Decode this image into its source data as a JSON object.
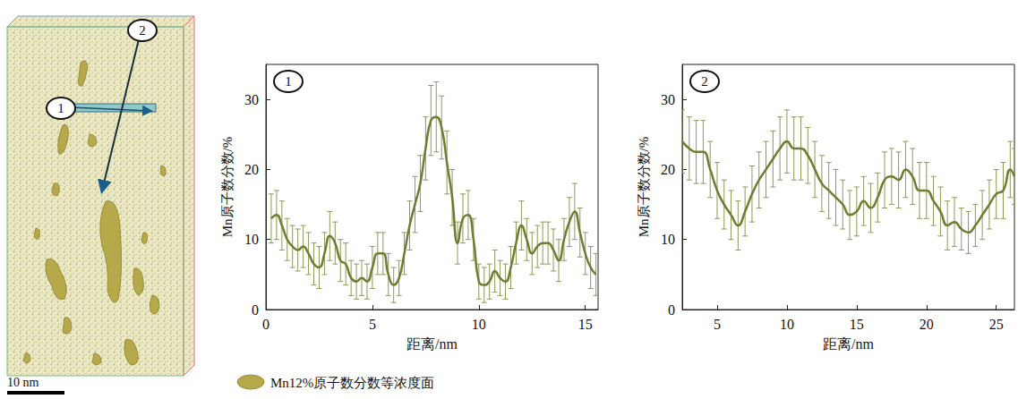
{
  "figure": {
    "markers": [
      "1",
      "2"
    ],
    "scale_bar": "10 nm",
    "isosurface_legend": "Mn12%原子数分数等浓度面"
  },
  "chart_data": [
    {
      "type": "line",
      "title": "1",
      "xlabel": "距离/nm",
      "ylabel": "Mn原子数分数/%",
      "color": "#6f7d32",
      "x": [
        0.25,
        0.5,
        0.75,
        1.0,
        1.25,
        1.5,
        1.75,
        2.0,
        2.25,
        2.5,
        2.75,
        3.0,
        3.25,
        3.5,
        3.75,
        4.0,
        4.25,
        4.5,
        4.75,
        5.0,
        5.25,
        5.5,
        5.75,
        6.0,
        6.25,
        6.5,
        6.75,
        7.0,
        7.25,
        7.5,
        7.75,
        8.0,
        8.25,
        8.5,
        8.75,
        9.0,
        9.25,
        9.5,
        9.75,
        10.0,
        10.25,
        10.5,
        10.75,
        11.0,
        11.25,
        11.5,
        11.75,
        12.0,
        12.25,
        12.5,
        12.75,
        13.0,
        13.25,
        13.5,
        13.75,
        14.0,
        14.25,
        14.5,
        14.75,
        15.0,
        15.25,
        15.5
      ],
      "values": [
        13,
        13.5,
        12,
        10,
        9,
        8.5,
        9,
        8,
        6.5,
        6,
        8,
        10.5,
        9.5,
        7,
        6.5,
        4.5,
        4,
        4.5,
        4,
        6,
        8,
        8,
        5,
        3.5,
        4.5,
        8,
        12,
        15,
        18,
        23,
        27,
        27.5,
        26,
        21,
        16,
        9.5,
        13,
        13.5,
        10,
        4,
        3.5,
        4,
        5.5,
        4.5,
        4,
        6,
        9.5,
        12,
        10,
        8,
        9,
        9.5,
        9.5,
        8.5,
        7,
        10,
        12.5,
        14,
        11,
        8,
        6,
        5
      ],
      "errors": [
        3.5,
        3.5,
        3.5,
        3,
        3,
        3,
        3,
        3,
        3,
        3,
        3,
        3.5,
        3,
        3,
        3,
        2.5,
        2.5,
        2.5,
        2.5,
        3,
        3,
        3,
        3,
        2.5,
        2.5,
        3,
        3.5,
        4,
        4,
        4.5,
        5,
        5,
        4.5,
        4.5,
        4,
        3,
        3.5,
        3.5,
        3,
        2.5,
        2.5,
        2.5,
        3,
        2.5,
        2.5,
        3,
        3,
        3.5,
        3,
        3,
        3,
        3,
        3,
        3,
        3,
        3,
        3.5,
        4,
        3.5,
        3,
        3,
        3
      ],
      "xlim": [
        0,
        15.6
      ],
      "xticks": [
        0,
        5,
        10,
        15
      ],
      "ylim": [
        0,
        35
      ],
      "yticks": [
        0,
        10,
        20,
        30
      ],
      "grid": false
    },
    {
      "type": "line",
      "title": "2",
      "xlabel": "距离/nm",
      "ylabel": "Mn原子数分数/%",
      "color": "#6f7d32",
      "x": [
        2.5,
        3,
        3.5,
        4,
        4.5,
        5,
        5.5,
        6,
        6.5,
        7,
        7.5,
        8,
        8.5,
        9,
        9.5,
        10,
        10.5,
        11,
        11.5,
        12,
        12.5,
        13,
        13.5,
        14,
        14.5,
        15,
        15.5,
        16,
        16.5,
        17,
        17.5,
        18,
        18.5,
        19,
        19.5,
        20,
        20.5,
        21,
        21.5,
        22,
        22.5,
        23,
        23.5,
        24,
        24.5,
        25,
        25.5,
        26,
        26.3
      ],
      "values": [
        24,
        23,
        22.5,
        22.5,
        20,
        17,
        15,
        13.5,
        12,
        14,
        16.5,
        18.5,
        20,
        21.5,
        23,
        24,
        23,
        23,
        22,
        20,
        18,
        17,
        16,
        15,
        13.5,
        14,
        15.5,
        14.5,
        16,
        18.5,
        19,
        18.5,
        20,
        19,
        17,
        17,
        15.5,
        14,
        12,
        12.5,
        11.5,
        11,
        12,
        13.5,
        15,
        16.5,
        17,
        20,
        19
      ],
      "errors": [
        4.5,
        4.5,
        4.5,
        4.5,
        4,
        4,
        3.5,
        3.5,
        3.5,
        3.5,
        4,
        4,
        4,
        4,
        4.5,
        4.5,
        4.5,
        4.5,
        4,
        4,
        4,
        4,
        4,
        3.5,
        3.5,
        3.5,
        3.5,
        3.5,
        3.5,
        4,
        4,
        4,
        4,
        4,
        4,
        4,
        3.5,
        3.5,
        3.5,
        3.5,
        3,
        3,
        3,
        3.5,
        3.5,
        3.5,
        4,
        4,
        4
      ],
      "xlim": [
        2.5,
        26.3
      ],
      "xticks": [
        5,
        10,
        15,
        20,
        25
      ],
      "ylim": [
        0,
        35
      ],
      "yticks": [
        0,
        10,
        20,
        30
      ],
      "grid": false
    }
  ]
}
